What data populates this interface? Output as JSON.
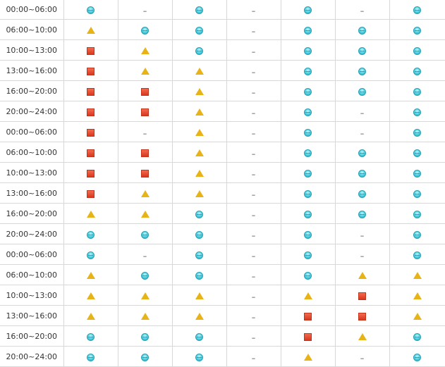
{
  "schedule": {
    "rows": [
      {
        "time": "00:00~06:00",
        "cells": [
          "good",
          "none",
          "good",
          "none",
          "good",
          "none",
          "good"
        ]
      },
      {
        "time": "06:00~10:00",
        "cells": [
          "fair",
          "good",
          "good",
          "none",
          "good",
          "good",
          "good"
        ]
      },
      {
        "time": "10:00~13:00",
        "cells": [
          "full",
          "fair",
          "good",
          "none",
          "good",
          "good",
          "good"
        ]
      },
      {
        "time": "13:00~16:00",
        "cells": [
          "full",
          "fair",
          "fair",
          "none",
          "good",
          "good",
          "good"
        ]
      },
      {
        "time": "16:00~20:00",
        "cells": [
          "full",
          "full",
          "fair",
          "none",
          "good",
          "good",
          "good"
        ]
      },
      {
        "time": "20:00~24:00",
        "cells": [
          "full",
          "full",
          "fair",
          "none",
          "good",
          "none",
          "good"
        ]
      },
      {
        "time": "00:00~06:00",
        "cells": [
          "full",
          "none",
          "fair",
          "none",
          "good",
          "none",
          "good"
        ]
      },
      {
        "time": "06:00~10:00",
        "cells": [
          "full",
          "full",
          "fair",
          "none",
          "good",
          "good",
          "good"
        ]
      },
      {
        "time": "10:00~13:00",
        "cells": [
          "full",
          "full",
          "fair",
          "none",
          "good",
          "good",
          "good"
        ]
      },
      {
        "time": "13:00~16:00",
        "cells": [
          "full",
          "fair",
          "fair",
          "none",
          "good",
          "good",
          "good"
        ]
      },
      {
        "time": "16:00~20:00",
        "cells": [
          "fair",
          "fair",
          "good",
          "none",
          "good",
          "good",
          "good"
        ]
      },
      {
        "time": "20:00~24:00",
        "cells": [
          "good",
          "good",
          "good",
          "none",
          "good",
          "none",
          "good"
        ]
      },
      {
        "time": "00:00~06:00",
        "cells": [
          "good",
          "none",
          "good",
          "none",
          "good",
          "none",
          "good"
        ]
      },
      {
        "time": "06:00~10:00",
        "cells": [
          "fair",
          "good",
          "good",
          "none",
          "good",
          "fair",
          "fair"
        ]
      },
      {
        "time": "10:00~13:00",
        "cells": [
          "fair",
          "fair",
          "fair",
          "none",
          "fair",
          "full",
          "fair"
        ]
      },
      {
        "time": "13:00~16:00",
        "cells": [
          "fair",
          "fair",
          "fair",
          "none",
          "full",
          "full",
          "fair"
        ]
      },
      {
        "time": "16:00~20:00",
        "cells": [
          "good",
          "good",
          "good",
          "none",
          "full",
          "fair",
          "good"
        ]
      },
      {
        "time": "20:00~24:00",
        "cells": [
          "good",
          "good",
          "good",
          "none",
          "fair",
          "none",
          "good"
        ]
      }
    ]
  },
  "symbols": {
    "none": "–",
    "good": "cyan-circle-icon",
    "fair": "yellow-triangle-icon",
    "full": "red-square-icon"
  },
  "colors": {
    "good": "#3cc6da",
    "fair": "#e7b316",
    "full": "#e2472b",
    "grid": "#d8d8d8"
  }
}
